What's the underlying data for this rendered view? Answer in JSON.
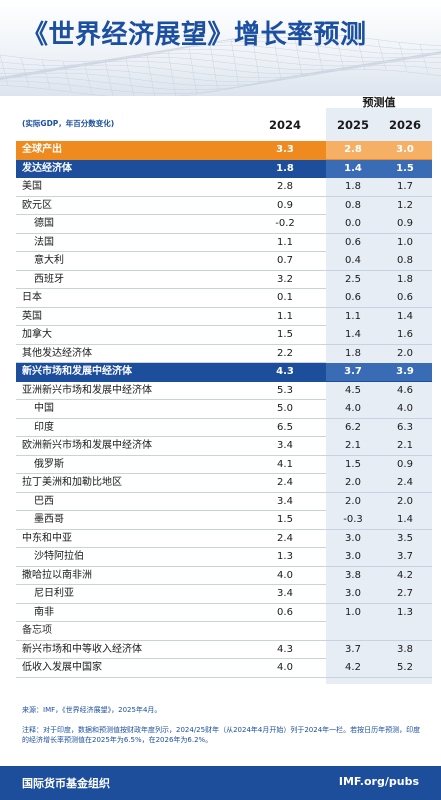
{
  "title": "《世界经济展望》增长率预测",
  "forecast_label": "预测值",
  "subheading": "(实际GDP，年百分数变化)",
  "colors": {
    "title": "#1b4fa0",
    "world_row": "#ef8a1e",
    "group_row": "#1d4e9c",
    "forecast_column": "#e7edf5",
    "footer": "#1d4e9c"
  },
  "chart_data": {
    "type": "table",
    "columns": [
      "2024",
      "2025",
      "2026"
    ],
    "rows": [
      {
        "label": "全球产出",
        "values": [
          "3.3",
          "2.8",
          "3.0"
        ],
        "style": "orange"
      },
      {
        "label": "发达经济体",
        "values": [
          "1.8",
          "1.4",
          "1.5"
        ],
        "style": "blue"
      },
      {
        "label": "美国",
        "values": [
          "2.8",
          "1.8",
          "1.7"
        ],
        "style": "normal"
      },
      {
        "label": "欧元区",
        "values": [
          "0.9",
          "0.8",
          "1.2"
        ],
        "style": "normal"
      },
      {
        "label": "德国",
        "values": [
          "-0.2",
          "0.0",
          "0.9"
        ],
        "style": "indent"
      },
      {
        "label": "法国",
        "values": [
          "1.1",
          "0.6",
          "1.0"
        ],
        "style": "indent"
      },
      {
        "label": "意大利",
        "values": [
          "0.7",
          "0.4",
          "0.8"
        ],
        "style": "indent"
      },
      {
        "label": "西班牙",
        "values": [
          "3.2",
          "2.5",
          "1.8"
        ],
        "style": "indent"
      },
      {
        "label": "日本",
        "values": [
          "0.1",
          "0.6",
          "0.6"
        ],
        "style": "normal"
      },
      {
        "label": "英国",
        "values": [
          "1.1",
          "1.1",
          "1.4"
        ],
        "style": "normal"
      },
      {
        "label": "加拿大",
        "values": [
          "1.5",
          "1.4",
          "1.6"
        ],
        "style": "normal"
      },
      {
        "label": "其他发达经济体",
        "values": [
          "2.2",
          "1.8",
          "2.0"
        ],
        "style": "normal"
      },
      {
        "label": "新兴市场和发展中经济体",
        "values": [
          "4.3",
          "3.7",
          "3.9"
        ],
        "style": "blue"
      },
      {
        "label": "亚洲新兴市场和发展中经济体",
        "values": [
          "5.3",
          "4.5",
          "4.6"
        ],
        "style": "normal"
      },
      {
        "label": "中国",
        "values": [
          "5.0",
          "4.0",
          "4.0"
        ],
        "style": "indent"
      },
      {
        "label": "印度",
        "values": [
          "6.5",
          "6.2",
          "6.3"
        ],
        "style": "indent"
      },
      {
        "label": "欧洲新兴市场和发展中经济体",
        "values": [
          "3.4",
          "2.1",
          "2.1"
        ],
        "style": "normal"
      },
      {
        "label": "俄罗斯",
        "values": [
          "4.1",
          "1.5",
          "0.9"
        ],
        "style": "indent"
      },
      {
        "label": "拉丁美洲和加勒比地区",
        "values": [
          "2.4",
          "2.0",
          "2.4"
        ],
        "style": "normal"
      },
      {
        "label": "巴西",
        "values": [
          "3.4",
          "2.0",
          "2.0"
        ],
        "style": "indent"
      },
      {
        "label": "墨西哥",
        "values": [
          "1.5",
          "-0.3",
          "1.4"
        ],
        "style": "indent"
      },
      {
        "label": "中东和中亚",
        "values": [
          "2.4",
          "3.0",
          "3.5"
        ],
        "style": "normal"
      },
      {
        "label": "沙特阿拉伯",
        "values": [
          "1.3",
          "3.0",
          "3.7"
        ],
        "style": "indent"
      },
      {
        "label": "撒哈拉以南非洲",
        "values": [
          "4.0",
          "3.8",
          "4.2"
        ],
        "style": "normal"
      },
      {
        "label": "尼日利亚",
        "values": [
          "3.4",
          "3.0",
          "2.7"
        ],
        "style": "indent"
      },
      {
        "label": "南非",
        "values": [
          "0.6",
          "1.0",
          "1.3"
        ],
        "style": "indent"
      },
      {
        "label": "备忘项",
        "values": [
          "",
          "",
          ""
        ],
        "style": "memo"
      },
      {
        "label": "新兴市场和中等收入经济体",
        "values": [
          "4.3",
          "3.7",
          "3.8"
        ],
        "style": "normal"
      },
      {
        "label": "低收入发展中国家",
        "values": [
          "4.0",
          "4.2",
          "5.2"
        ],
        "style": "normal"
      }
    ]
  },
  "source": "来源：IMF，《世界经济展望》，2025年4月。",
  "note": "注释：对于印度，数据和预测值按财政年度列示，2024/25财年（从2024年4月开始）列于2024年一栏。若按日历年预测，印度的经济增长率预测值在2025年为6.5%，在2026年为6.2%。",
  "footer": {
    "org": "国际货币基金组织",
    "url": "IMF.org/pubs"
  }
}
